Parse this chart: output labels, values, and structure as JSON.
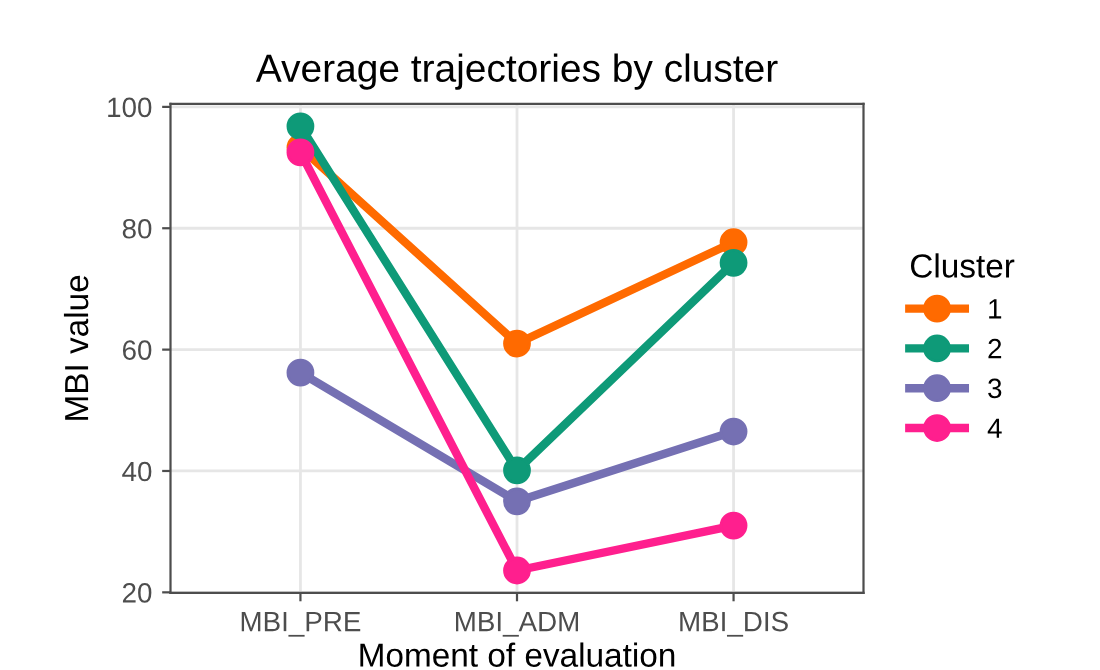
{
  "chart_data": {
    "type": "line",
    "title": "Average trajectories by cluster",
    "xlabel": "Moment of evaluation",
    "ylabel": "MBI value",
    "legend_title": "Cluster",
    "categories": [
      "MBI_PRE",
      "MBI_ADM",
      "MBI_DIS"
    ],
    "series": [
      {
        "name": "1",
        "color": "#ff6a00",
        "values": [
          93.3,
          61.0,
          77.7
        ]
      },
      {
        "name": "2",
        "color": "#0e9a78",
        "values": [
          96.8,
          40.1,
          74.3
        ]
      },
      {
        "name": "3",
        "color": "#7570b3",
        "values": [
          56.2,
          35.0,
          46.5
        ]
      },
      {
        "name": "4",
        "color": "#ff1f8e",
        "values": [
          92.5,
          23.6,
          31.0
        ]
      }
    ],
    "ylim": [
      19.9,
      100.5
    ],
    "yticks": [
      20,
      40,
      60,
      80,
      100
    ],
    "grid": true,
    "legend": "right",
    "marker": "circle",
    "line_style": "solid"
  }
}
